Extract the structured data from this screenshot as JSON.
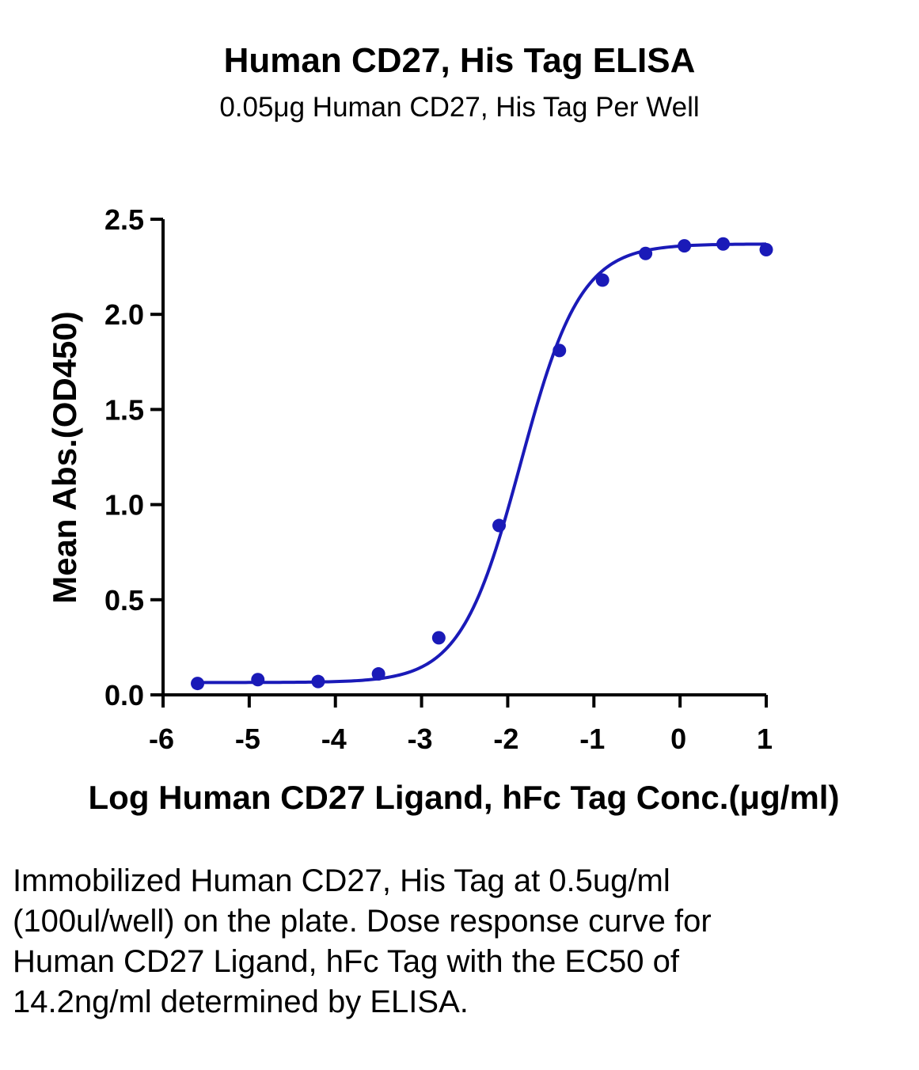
{
  "chart_data": {
    "type": "line",
    "title": "Human CD27, His Tag ELISA",
    "subtitle": "0.05μg Human CD27, His Tag Per Well",
    "xlabel": "Log Human CD27 Ligand, hFc Tag Conc.(μg/ml)",
    "ylabel": "Mean Abs.(OD450)",
    "xlim": [
      -6,
      1
    ],
    "ylim": [
      0,
      2.5
    ],
    "x_ticks": [
      -6,
      -5,
      -4,
      -3,
      -2,
      -1,
      0,
      1
    ],
    "x_tick_labels": [
      "-6",
      "-5",
      "-4",
      "-3",
      "-2",
      "-1",
      "0",
      "1"
    ],
    "y_ticks": [
      0,
      0.5,
      1.0,
      1.5,
      2.0,
      2.5
    ],
    "y_tick_labels": [
      "0.0",
      "0.5",
      "1.0",
      "1.5",
      "2.0",
      "2.5"
    ],
    "grid": false,
    "series": [
      {
        "color": "#1a1ab8",
        "points": [
          {
            "x": -5.6,
            "y": 0.06
          },
          {
            "x": -4.9,
            "y": 0.08
          },
          {
            "x": -4.2,
            "y": 0.07
          },
          {
            "x": -3.5,
            "y": 0.11
          },
          {
            "x": -2.8,
            "y": 0.3
          },
          {
            "x": -2.1,
            "y": 0.89
          },
          {
            "x": -1.4,
            "y": 1.81
          },
          {
            "x": -0.9,
            "y": 2.18
          },
          {
            "x": -0.4,
            "y": 2.32
          },
          {
            "x": 0.05,
            "y": 2.36
          },
          {
            "x": 0.5,
            "y": 2.37
          },
          {
            "x": 1.0,
            "y": 2.34
          }
        ],
        "fit": {
          "model": "4PL",
          "bottom": 0.065,
          "top": 2.37,
          "log_ec50": -1.85,
          "hill": 1.25
        }
      }
    ]
  },
  "caption": "Immobilized Human CD27, His Tag at 0.5ug/ml (100ul/well) on the plate. Dose response curve for Human CD27 Ligand, hFc Tag with the EC50 of 14.2ng/ml determined by ELISA."
}
